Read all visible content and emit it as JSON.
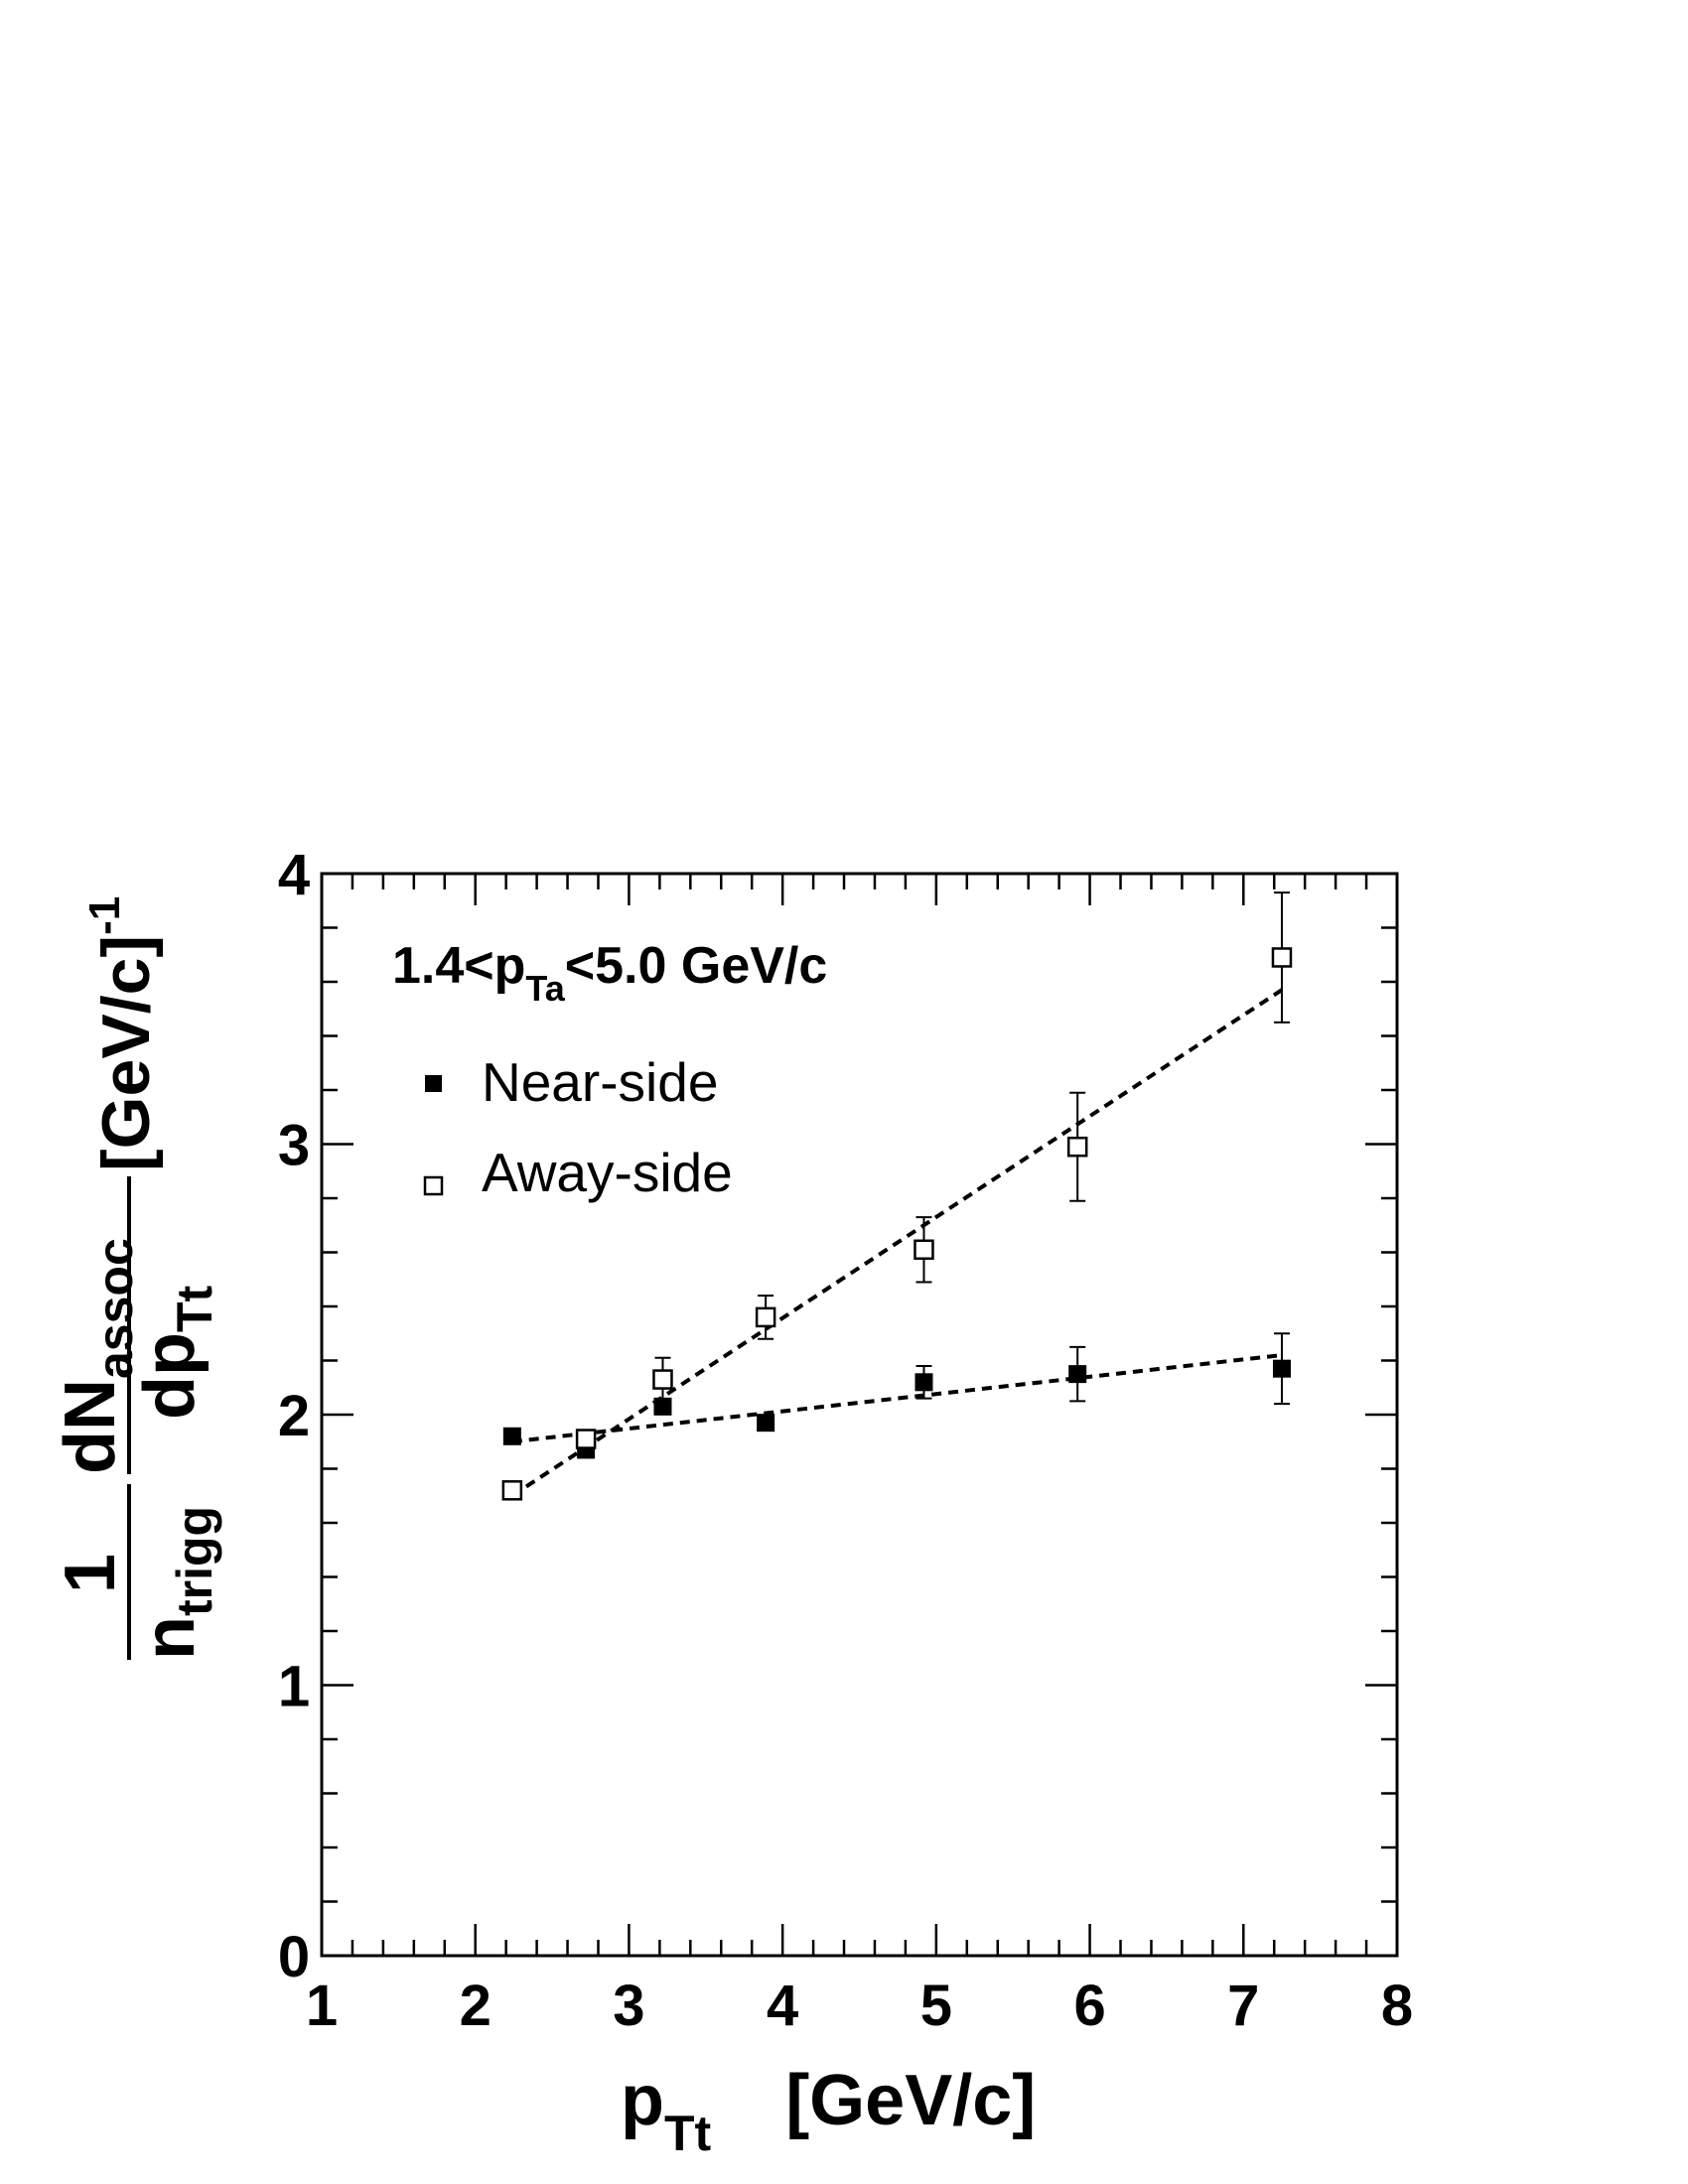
{
  "chart_data": {
    "type": "scatter",
    "annotation": {
      "main": "1.4<p",
      "sub": "Ta",
      "tail": "<5.0 GeV/c"
    },
    "xlabel": {
      "main": "p",
      "sub": "Tt",
      "unit": "[GeV/c]"
    },
    "ylabel": {
      "one": "1",
      "denom_main": "n",
      "denom_sub": "trigg",
      "num_main": "dN",
      "num_sub": "assoc",
      "dp_main": "dp",
      "dp_sub": "Tt",
      "unit": "[GeV/c]",
      "unit_sup": "-1"
    },
    "xlim": [
      1,
      8
    ],
    "ylim": [
      0,
      4
    ],
    "x_ticks": [
      "1",
      "2",
      "3",
      "4",
      "5",
      "6",
      "7",
      "8"
    ],
    "y_ticks": [
      "0",
      "1",
      "2",
      "3",
      "4"
    ],
    "legend_position": "top-left",
    "series": [
      {
        "name": "Near-side",
        "marker": "filled-square",
        "x": [
          2.24,
          2.72,
          3.22,
          3.89,
          4.92,
          5.92,
          7.25
        ],
        "y": [
          1.92,
          1.87,
          2.03,
          1.97,
          2.12,
          2.15,
          2.17
        ],
        "yerr": [
          0.02,
          0.02,
          0.02,
          0.02,
          0.06,
          0.1,
          0.13
        ],
        "fit": {
          "x": [
            2.24,
            7.25
          ],
          "y": [
            1.9,
            2.22
          ]
        }
      },
      {
        "name": "Away-side",
        "marker": "open-square",
        "x": [
          2.24,
          2.72,
          3.22,
          3.89,
          4.92,
          5.92,
          7.25
        ],
        "y": [
          1.72,
          1.91,
          2.13,
          2.36,
          2.61,
          2.99,
          3.69
        ],
        "yerr": [
          0.02,
          0.03,
          0.08,
          0.08,
          0.12,
          0.2,
          0.24
        ],
        "fit": {
          "x": [
            2.24,
            7.25
          ],
          "y": [
            1.7,
            3.57
          ]
        }
      }
    ]
  }
}
